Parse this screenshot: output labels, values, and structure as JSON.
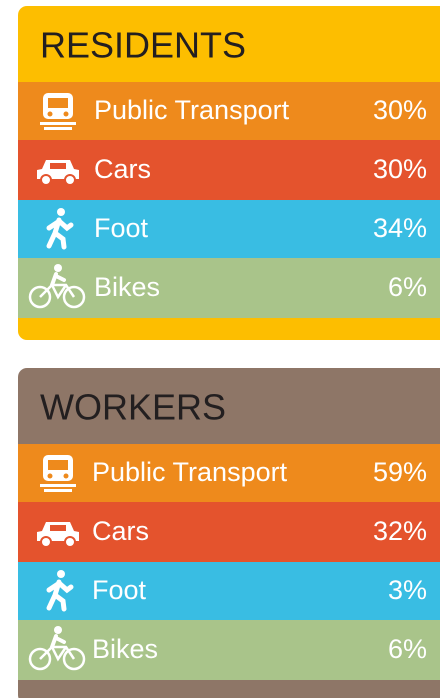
{
  "panels": [
    {
      "title": "RESIDENTS",
      "rows": [
        {
          "label": "Public Transport",
          "value": "30%"
        },
        {
          "label": "Cars",
          "value": "30%"
        },
        {
          "label": "Foot",
          "value": "34%"
        },
        {
          "label": "Bikes",
          "value": "6%"
        }
      ]
    },
    {
      "title": "WORKERS",
      "rows": [
        {
          "label": "Public Transport",
          "value": "59%"
        },
        {
          "label": "Cars",
          "value": "32%"
        },
        {
          "label": "Foot",
          "value": "3%"
        },
        {
          "label": "Bikes",
          "value": "6%"
        }
      ]
    }
  ]
}
